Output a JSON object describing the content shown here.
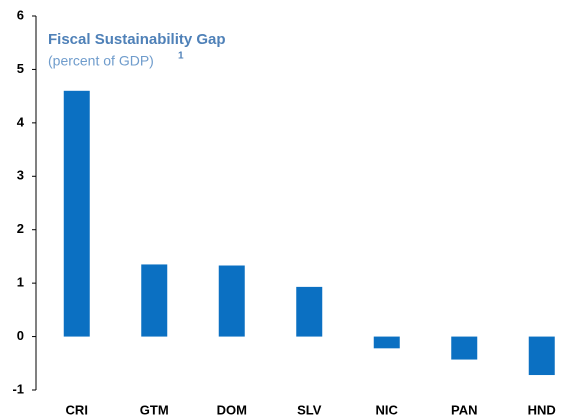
{
  "chart_data": {
    "type": "bar",
    "title": "Fiscal Sustainability Gap",
    "subtitle": "(percent of GDP)",
    "subtitle_note": "1",
    "categories": [
      "CRI",
      "GTM",
      "DOM",
      "SLV",
      "NIC",
      "PAN",
      "HND"
    ],
    "values": [
      4.6,
      1.35,
      1.33,
      0.93,
      -0.22,
      -0.43,
      -0.72
    ],
    "color": "#0b70c2",
    "ylim": [
      -1,
      6
    ],
    "yticks": [
      -1,
      0,
      1,
      2,
      3,
      4,
      5,
      6
    ],
    "grid": false
  }
}
